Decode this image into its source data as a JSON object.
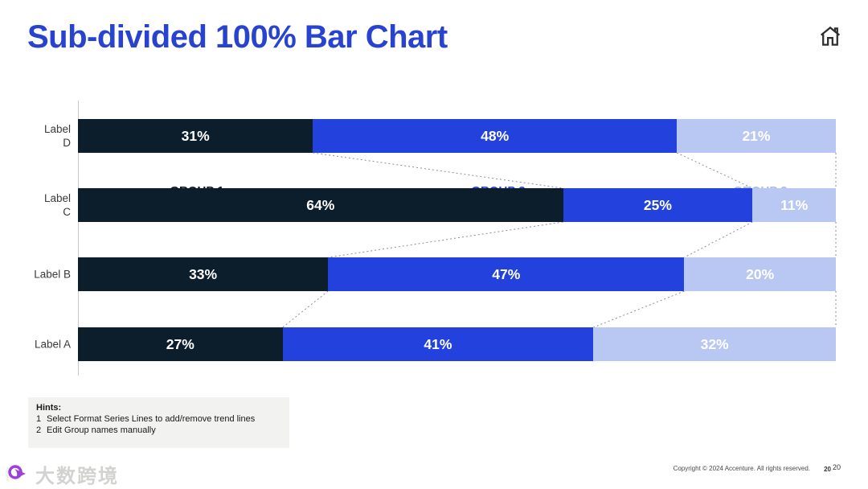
{
  "page": {
    "title": "Sub-divided 100% Bar Chart"
  },
  "icons": {
    "home": "home-icon"
  },
  "chart_data": {
    "type": "bar",
    "subtype": "horizontal-100pct-stacked",
    "title": "Sub-divided 100% Bar Chart",
    "categories": [
      "Label D",
      "Label C",
      "Label B",
      "Label A"
    ],
    "categories_display": [
      [
        "Label",
        "D"
      ],
      [
        "Label",
        "C"
      ],
      [
        "Label B"
      ],
      [
        "Label A"
      ]
    ],
    "series": [
      {
        "name": "GROUP 1",
        "color": "#0c1e2c",
        "header_color": "#12181f",
        "values": [
          31,
          64,
          33,
          27
        ]
      },
      {
        "name": "GROUP 2",
        "color": "#2342dd",
        "header_color": "#2743cf",
        "values": [
          48,
          25,
          47,
          41
        ]
      },
      {
        "name": "GROUP 3",
        "color": "#b9c8f2",
        "header_color": "#a6bbee",
        "values": [
          21,
          11,
          20,
          32
        ]
      }
    ],
    "value_suffix": "%",
    "value_label_color": "#ffffff",
    "trend_lines": true,
    "trend_line_color": "#8f8f8f",
    "axis_line_color": "#c8c8c8",
    "legend_position": "top-as-column-headers",
    "xlim": [
      0,
      100
    ],
    "grid": false
  },
  "hints": {
    "title": "Hints:",
    "items": [
      {
        "num": "1",
        "text": "Select Format Series Lines to add/remove trend lines"
      },
      {
        "num": "2",
        "text": "Edit Group names manually"
      }
    ]
  },
  "footer": {
    "copyright": "Copyright © 2024 Accenture. All rights reserved.",
    "page_numbers": [
      "20",
      "20"
    ]
  },
  "watermark": {
    "text": "大数跨境"
  }
}
